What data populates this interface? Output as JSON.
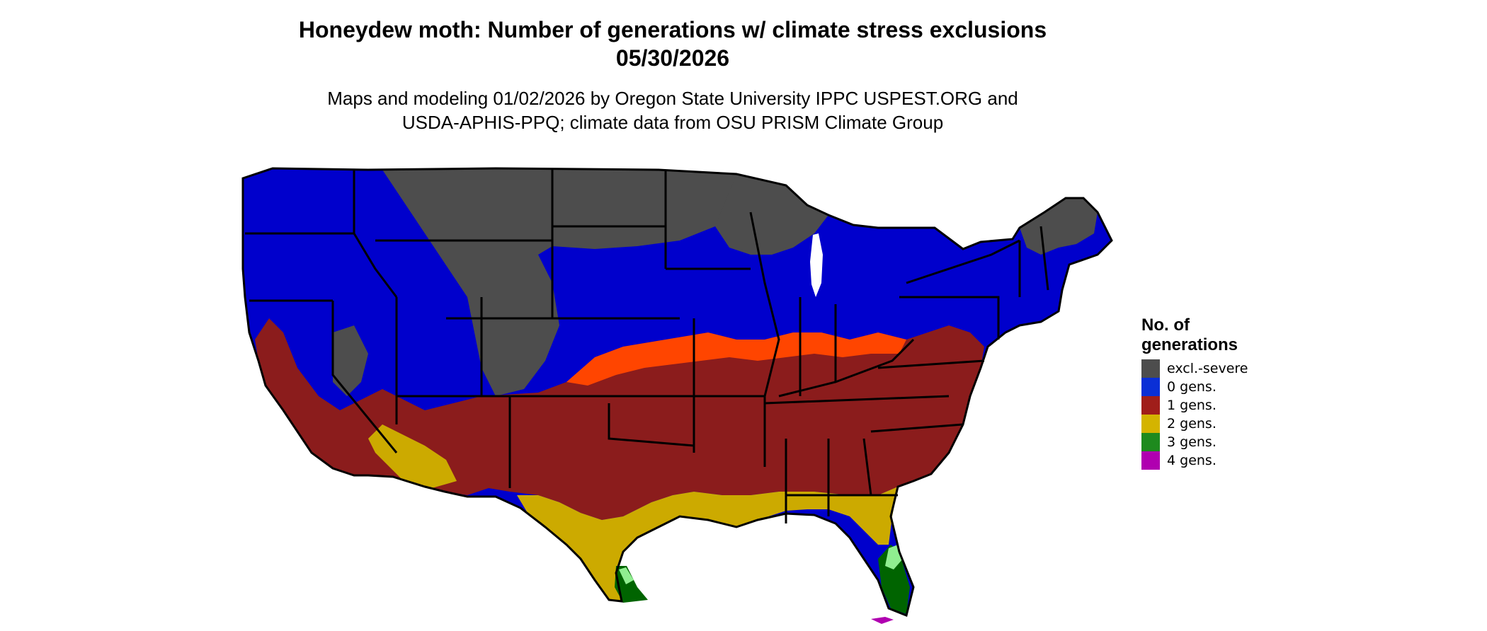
{
  "title_line1": "Honeydew moth: Number of generations w/ climate stress exclusions",
  "title_line2": "05/30/2026",
  "subtitle_line1": "Maps and modeling 01/02/2026 by Oregon State University IPPC USPEST.ORG and",
  "subtitle_line2": "USDA-APHIS-PPQ; climate data from OSU PRISM Climate Group",
  "legend": {
    "title": "No. of\ngenerations",
    "items": [
      {
        "label": "excl.-severe",
        "color": "#4d4d4d"
      },
      {
        "label": "0 gens.",
        "color": "#0a2fd6"
      },
      {
        "label": "1 gens.",
        "color": "#a01e1a"
      },
      {
        "label": "2 gens.",
        "color": "#d4b400"
      },
      {
        "label": "3 gens.",
        "color": "#1e8a1e"
      },
      {
        "label": "4 gens.",
        "color": "#b000b0"
      }
    ]
  },
  "map_colors": {
    "excluded": "#4d4d4d",
    "gen0": "#0000cc",
    "gen1": "#8b1c1c",
    "gen1_edge": "#ff4500",
    "gen2": "#ccaa00",
    "gen3": "#006400",
    "gen3_light": "#90ee90",
    "gen4": "#b000b0",
    "state_borders": "#000000"
  }
}
